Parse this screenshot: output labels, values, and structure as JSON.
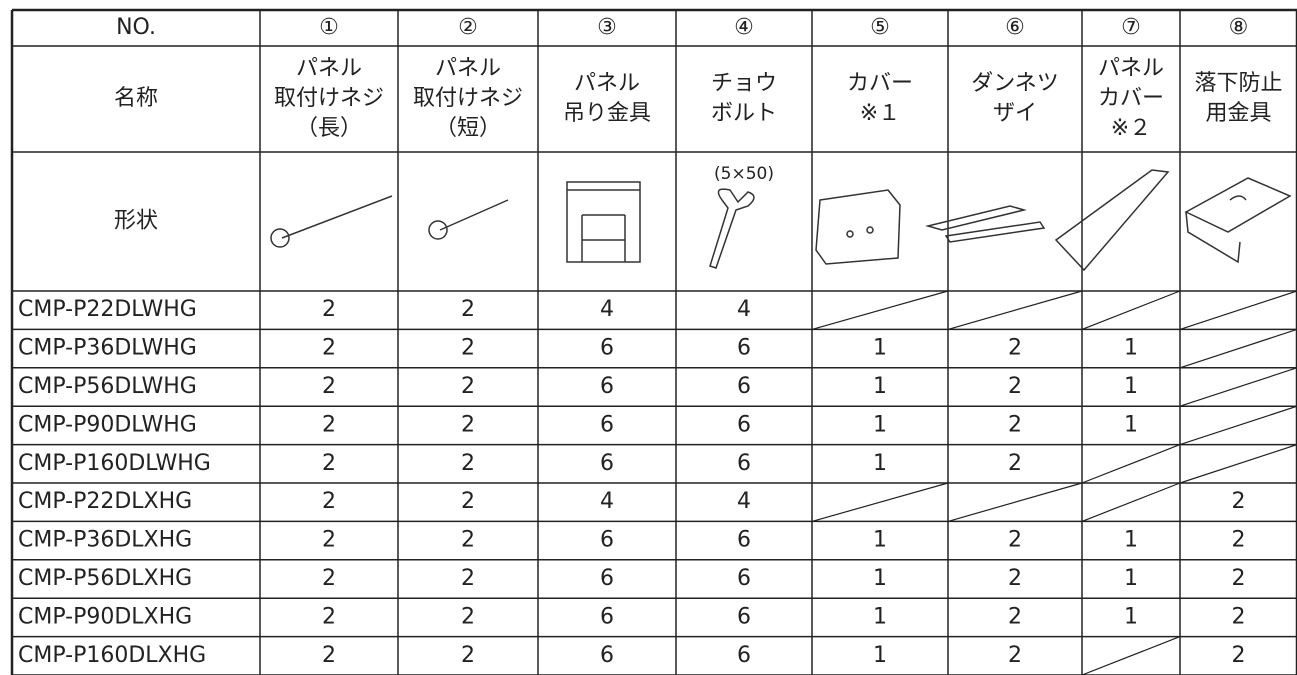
{
  "header": {
    "no_label": "NO.",
    "numbers": [
      "①",
      "②",
      "③",
      "④",
      "⑤",
      "⑥",
      "⑦",
      "⑧"
    ]
  },
  "name_label": "名称",
  "names": [
    [
      "パネル",
      "取付けネジ",
      "（長）"
    ],
    [
      "パネル",
      "取付けネジ",
      "（短）"
    ],
    [
      "パネル",
      "吊り金具"
    ],
    [
      "チョウ",
      "ボルト"
    ],
    [
      "カバー",
      "※１"
    ],
    [
      "ダンネツ",
      "ザイ"
    ],
    [
      "パネル",
      "カバー",
      "※２"
    ],
    [
      "落下防止",
      "用金具"
    ]
  ],
  "shape_label": "形状",
  "shape_note": "(5×50)",
  "table": {
    "rows": [
      {
        "model": "CMP-P22DLWHG",
        "counts": [
          2,
          2,
          4,
          4,
          null,
          null,
          null,
          null
        ]
      },
      {
        "model": "CMP-P36DLWHG",
        "counts": [
          2,
          2,
          6,
          6,
          1,
          2,
          1,
          null
        ]
      },
      {
        "model": "CMP-P56DLWHG",
        "counts": [
          2,
          2,
          6,
          6,
          1,
          2,
          1,
          null
        ]
      },
      {
        "model": "CMP-P90DLWHG",
        "counts": [
          2,
          2,
          6,
          6,
          1,
          2,
          1,
          null
        ]
      },
      {
        "model": "CMP-P160DLWHG",
        "counts": [
          2,
          2,
          6,
          6,
          1,
          2,
          null,
          null
        ]
      },
      {
        "model": "CMP-P22DLXHG",
        "counts": [
          2,
          2,
          4,
          4,
          null,
          null,
          null,
          2
        ]
      },
      {
        "model": "CMP-P36DLXHG",
        "counts": [
          2,
          2,
          6,
          6,
          1,
          2,
          1,
          2
        ]
      },
      {
        "model": "CMP-P56DLXHG",
        "counts": [
          2,
          2,
          6,
          6,
          1,
          2,
          1,
          2
        ]
      },
      {
        "model": "CMP-P90DLXHG",
        "counts": [
          2,
          2,
          6,
          6,
          1,
          2,
          1,
          2
        ]
      },
      {
        "model": "CMP-P160DLXHG",
        "counts": [
          2,
          2,
          6,
          6,
          1,
          2,
          null,
          2
        ]
      }
    ]
  }
}
